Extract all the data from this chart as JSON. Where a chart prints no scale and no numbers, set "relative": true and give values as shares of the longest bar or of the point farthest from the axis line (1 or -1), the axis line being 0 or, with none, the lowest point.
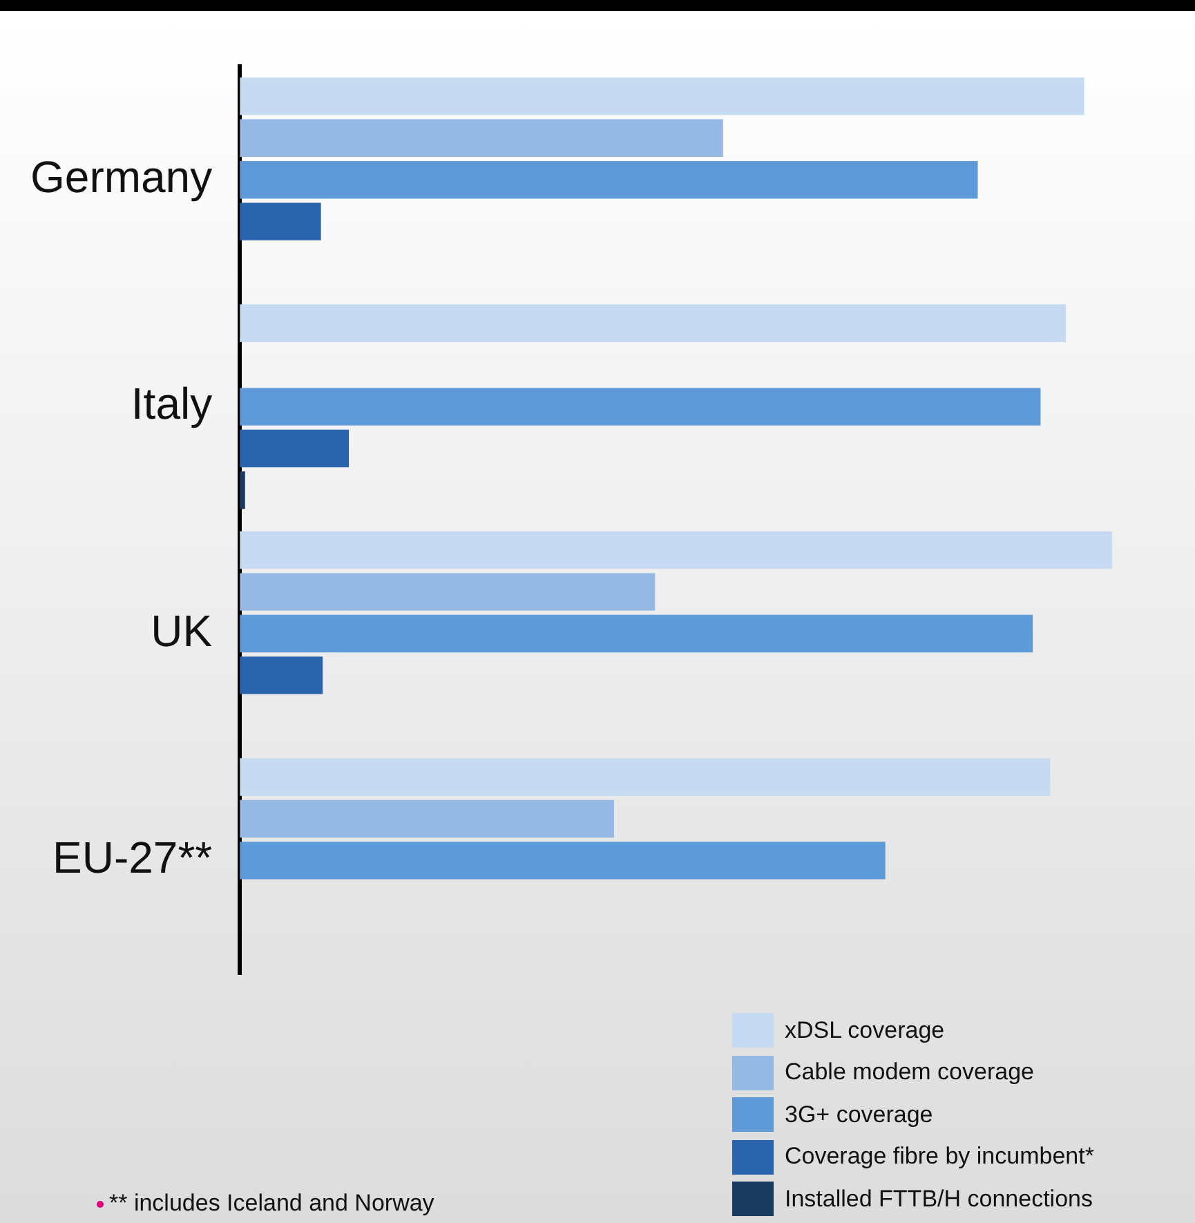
{
  "chart_data": {
    "type": "bar",
    "orientation": "horizontal",
    "relative": true,
    "categories": [
      "Germany",
      "Italy",
      "UK",
      "EU-27**"
    ],
    "series": [
      {
        "name": "xDSL coverage",
        "color": "#c6daf1",
        "values": [
          0.968,
          0.947,
          1,
          0.929
        ]
      },
      {
        "name": "Cable modem coverage",
        "color": "#95b9e3",
        "values": [
          0.554,
          null,
          0.476,
          0.429
        ]
      },
      {
        "name": "3G+ coverage",
        "color": "#5e9ad8",
        "values": [
          0.846,
          0.918,
          0.909,
          0.74
        ]
      },
      {
        "name": "Coverage fibre by incumbent*",
        "color": "#2a64ac",
        "values": [
          0.093,
          0.125,
          0.095,
          null
        ]
      },
      {
        "name": "Installed FTTB/H connections",
        "color": "#1a3a60",
        "values": [
          null,
          0.006,
          null,
          null
        ]
      }
    ],
    "legend": "bottom right",
    "annotations": [
      "** includes Iceland and Norway"
    ]
  }
}
